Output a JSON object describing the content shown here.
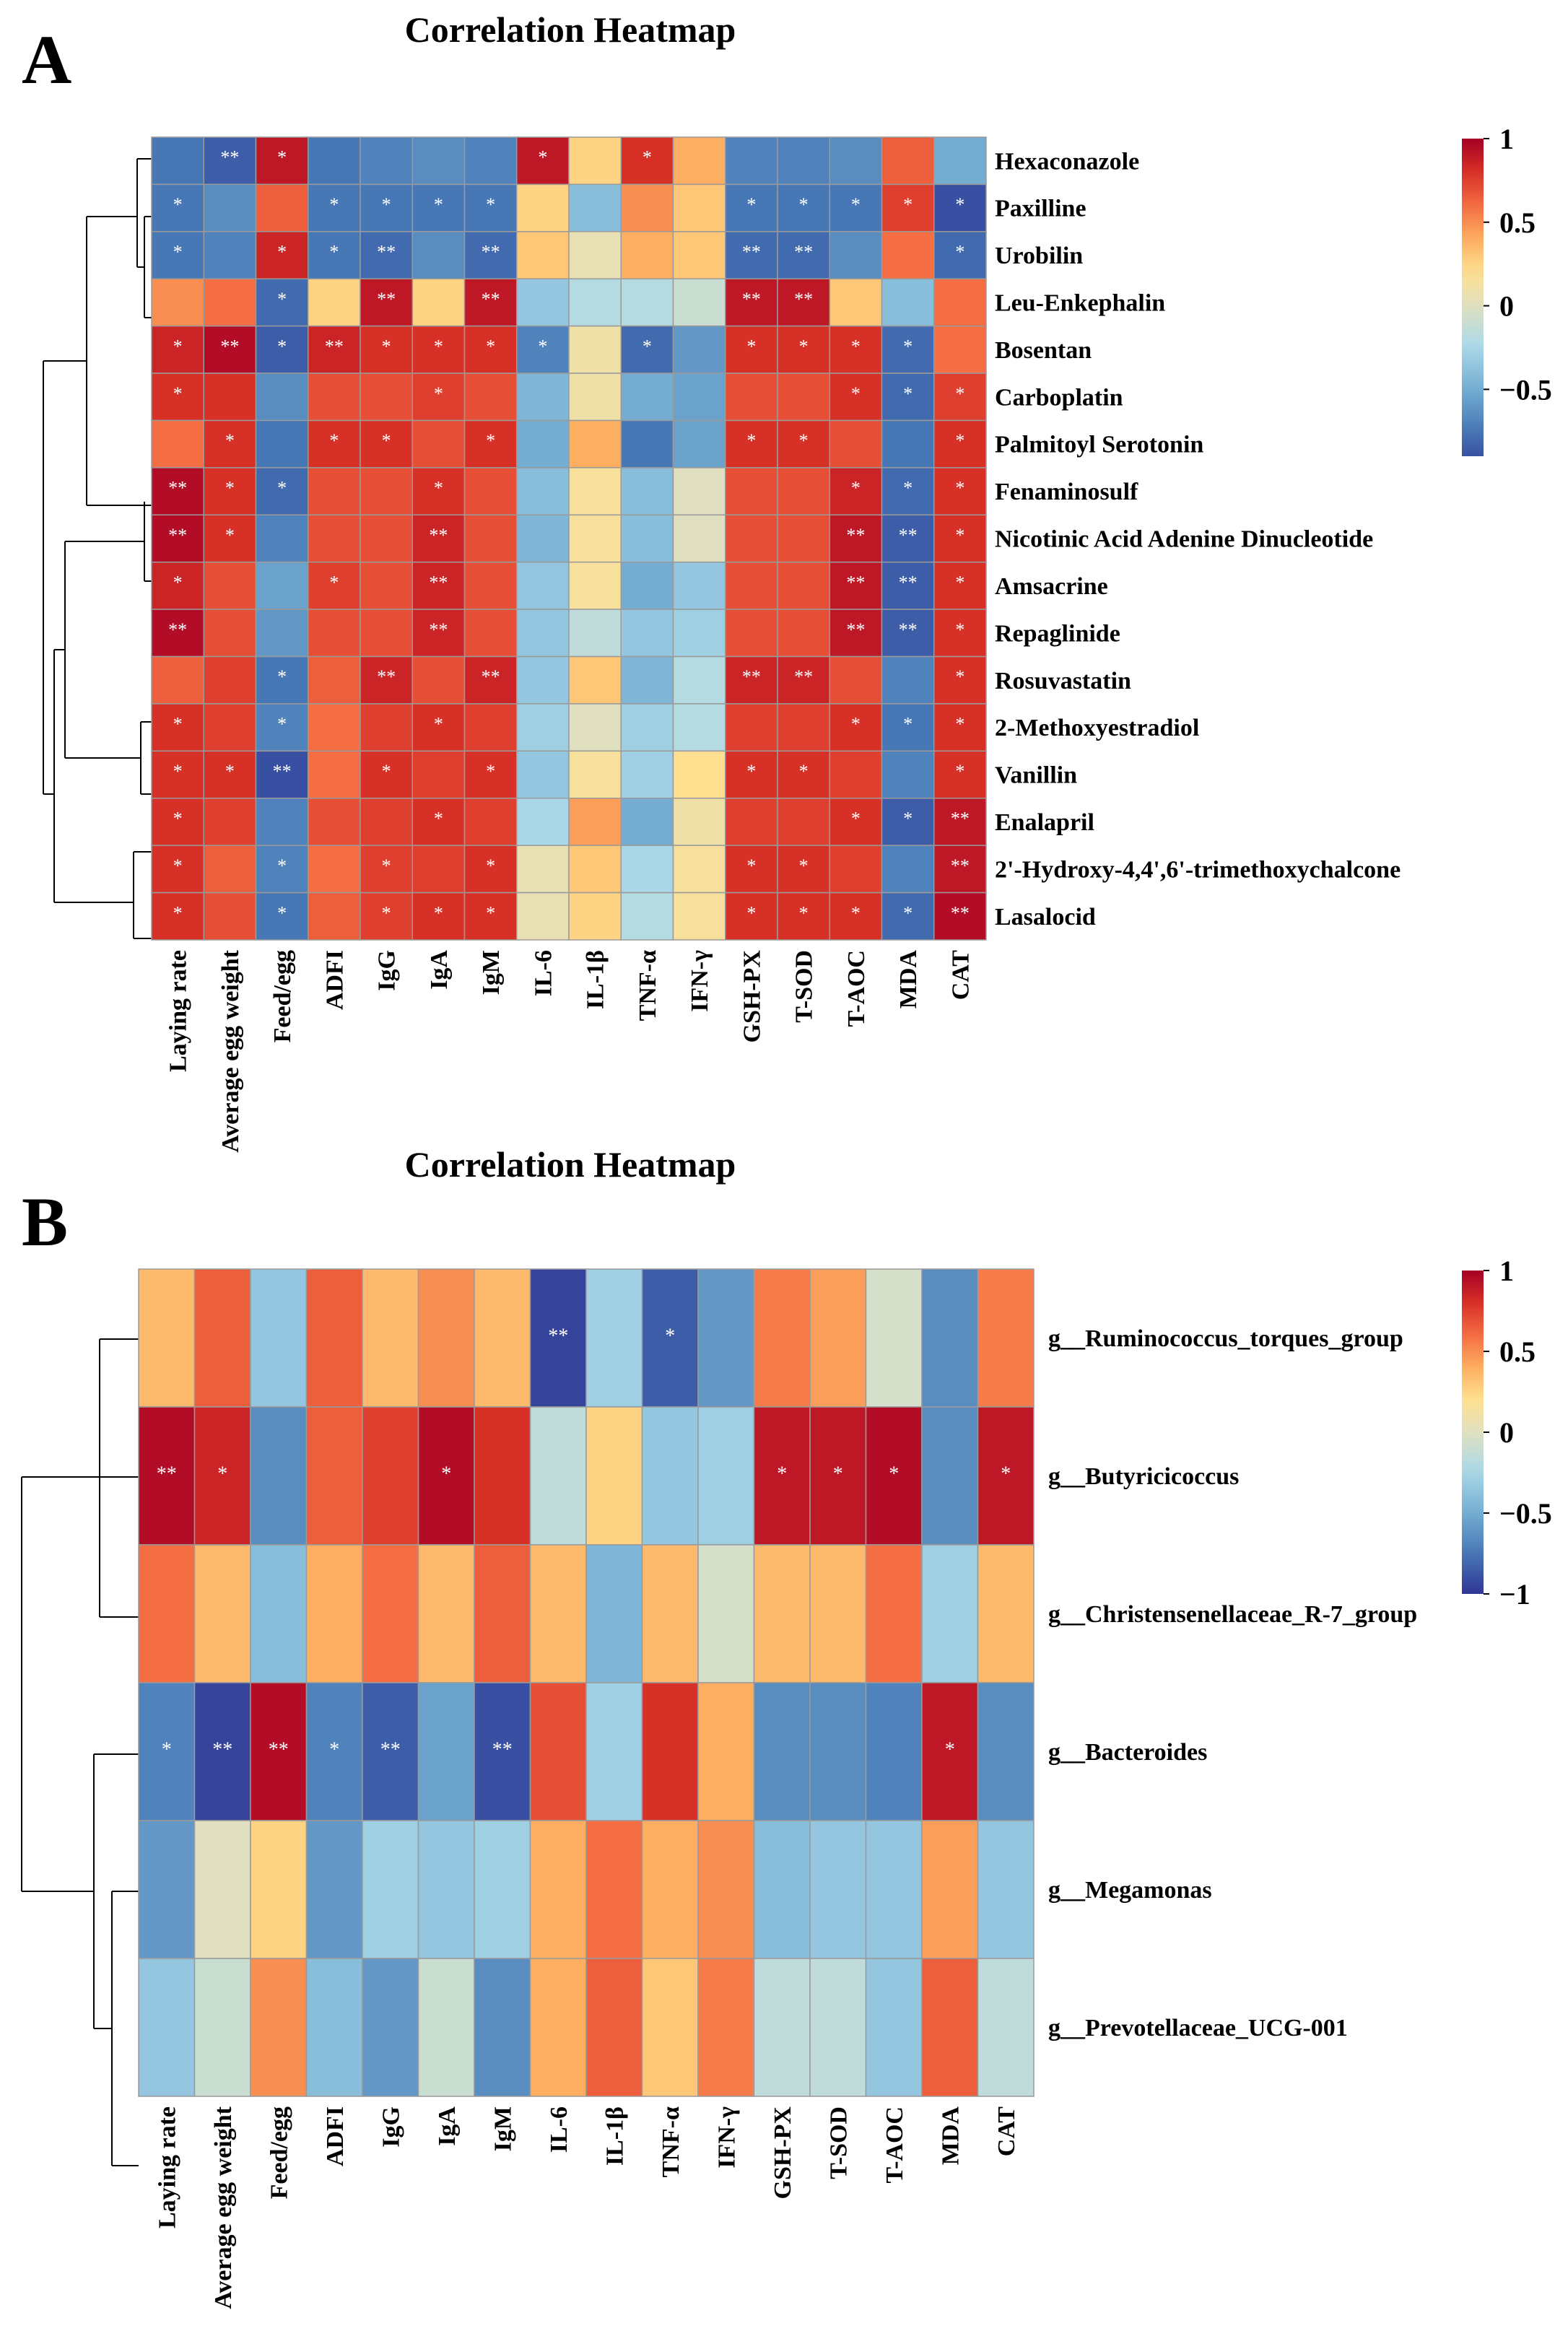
{
  "chart_data": [
    {
      "type": "heatmap",
      "panel_label": "A",
      "title": "Correlation Heatmap",
      "xlabel": "",
      "ylabel": "",
      "columns": [
        "Laying rate",
        "Average egg weight",
        "Feed/egg",
        "ADFI",
        "IgG",
        "IgA",
        "IgM",
        "IL-6",
        "IL-1β",
        "TNF-α",
        "IFN-γ",
        "GSH-PX",
        "T-SOD",
        "T-AOC",
        "MDA",
        "CAT"
      ],
      "rows": [
        "Hexaconazole",
        "Paxilline",
        "Urobilin",
        "Leu-Enkephalin",
        "Bosentan",
        "Carboplatin",
        "Palmitoyl Serotonin",
        "Fenaminosulf",
        "Nicotinic Acid Adenine Dinucleotide",
        "Amsacrine",
        "Repaglinide",
        "Rosuvastatin",
        "2-Methoxyestradiol",
        "Vanillin",
        "Enalapril",
        "2'-Hydroxy-4,4',6'-trimethoxychalcone",
        "Lasalocid"
      ],
      "values": [
        [
          -0.75,
          -0.85,
          0.9,
          -0.75,
          -0.7,
          -0.65,
          -0.7,
          0.9,
          0.25,
          0.8,
          0.4,
          -0.7,
          -0.7,
          -0.65,
          0.65,
          -0.5
        ],
        [
          -0.75,
          -0.65,
          0.65,
          -0.75,
          -0.75,
          -0.75,
          -0.75,
          0.25,
          -0.4,
          0.5,
          0.3,
          -0.75,
          -0.75,
          -0.75,
          0.75,
          -0.9
        ],
        [
          -0.75,
          -0.7,
          0.85,
          -0.75,
          -0.8,
          -0.65,
          -0.8,
          0.3,
          0.05,
          0.4,
          0.3,
          -0.8,
          -0.8,
          -0.65,
          0.6,
          -0.8
        ],
        [
          0.5,
          0.6,
          -0.8,
          0.25,
          0.9,
          0.25,
          0.9,
          -0.35,
          -0.2,
          -0.2,
          -0.1,
          0.9,
          0.9,
          0.3,
          -0.4,
          0.6
        ],
        [
          0.85,
          0.95,
          -0.85,
          0.85,
          0.8,
          0.8,
          0.8,
          -0.7,
          0.1,
          -0.8,
          -0.6,
          0.8,
          0.8,
          0.8,
          -0.8,
          0.6
        ],
        [
          0.8,
          0.8,
          -0.65,
          0.7,
          0.7,
          0.75,
          0.7,
          -0.45,
          0.1,
          -0.5,
          -0.55,
          0.7,
          0.7,
          0.8,
          -0.8,
          0.75
        ],
        [
          0.6,
          0.8,
          -0.75,
          0.8,
          0.8,
          0.7,
          0.8,
          -0.5,
          0.4,
          -0.75,
          -0.55,
          0.8,
          0.8,
          0.7,
          -0.75,
          0.8
        ],
        [
          0.95,
          0.8,
          -0.8,
          0.7,
          0.7,
          0.8,
          0.7,
          -0.4,
          0.15,
          -0.4,
          0.0,
          0.7,
          0.7,
          0.85,
          -0.8,
          0.8
        ],
        [
          0.95,
          0.8,
          -0.7,
          0.7,
          0.7,
          0.85,
          0.7,
          -0.45,
          0.15,
          -0.4,
          0.0,
          0.7,
          0.7,
          0.9,
          -0.85,
          0.8
        ],
        [
          0.85,
          0.7,
          -0.55,
          0.75,
          0.7,
          0.85,
          0.7,
          -0.35,
          0.15,
          -0.5,
          -0.35,
          0.7,
          0.7,
          0.9,
          -0.85,
          0.8
        ],
        [
          0.95,
          0.7,
          -0.6,
          0.7,
          0.7,
          0.85,
          0.7,
          -0.35,
          -0.15,
          -0.35,
          -0.3,
          0.7,
          0.7,
          0.9,
          -0.85,
          0.8
        ],
        [
          0.65,
          0.75,
          -0.75,
          0.65,
          0.85,
          0.7,
          0.85,
          -0.35,
          0.3,
          -0.45,
          -0.2,
          0.85,
          0.85,
          0.7,
          -0.7,
          0.8
        ],
        [
          0.8,
          0.75,
          -0.7,
          0.6,
          0.75,
          0.8,
          0.75,
          -0.3,
          0.0,
          -0.3,
          -0.2,
          0.75,
          0.75,
          0.8,
          -0.75,
          0.8
        ],
        [
          0.8,
          0.8,
          -0.9,
          0.6,
          0.8,
          0.75,
          0.8,
          -0.35,
          0.15,
          -0.3,
          0.2,
          0.8,
          0.8,
          0.75,
          -0.7,
          0.8
        ],
        [
          0.8,
          0.75,
          -0.7,
          0.7,
          0.75,
          0.8,
          0.75,
          -0.25,
          0.45,
          -0.5,
          0.1,
          0.75,
          0.75,
          0.8,
          -0.85,
          0.9
        ],
        [
          0.8,
          0.65,
          -0.7,
          0.6,
          0.75,
          0.75,
          0.8,
          0.05,
          0.3,
          -0.25,
          0.15,
          0.8,
          0.8,
          0.75,
          -0.7,
          0.9
        ],
        [
          0.8,
          0.7,
          -0.75,
          0.65,
          0.75,
          0.8,
          0.8,
          0.05,
          0.25,
          -0.2,
          0.15,
          0.8,
          0.8,
          0.8,
          -0.8,
          0.95
        ]
      ],
      "significance": [
        [
          "",
          "**",
          "*",
          "",
          "",
          "",
          "",
          "*",
          "",
          "*",
          "",
          "",
          "",
          "",
          "",
          ""
        ],
        [
          "*",
          "",
          "",
          "*",
          "*",
          "*",
          "*",
          "",
          "",
          "",
          "",
          "*",
          "*",
          "*",
          "*",
          "*"
        ],
        [
          "*",
          "",
          "*",
          "*",
          "**",
          "",
          "**",
          "",
          "",
          "",
          "",
          "**",
          "**",
          "",
          "",
          "*"
        ],
        [
          "",
          "",
          "*",
          "",
          "**",
          "",
          "**",
          "",
          "",
          "",
          "",
          "**",
          "**",
          "",
          "",
          ""
        ],
        [
          "*",
          "**",
          "*",
          "**",
          "*",
          "*",
          "*",
          "*",
          "",
          "*",
          "",
          "*",
          "*",
          "*",
          "*",
          ""
        ],
        [
          "*",
          "",
          "",
          "",
          "",
          "*",
          "",
          "",
          "",
          "",
          "",
          "",
          "",
          "*",
          "*",
          "*"
        ],
        [
          "",
          "*",
          "",
          "*",
          "*",
          "",
          "*",
          "",
          "",
          "",
          "",
          "*",
          "*",
          "",
          "",
          "*"
        ],
        [
          "**",
          "*",
          "*",
          "",
          "",
          "*",
          "",
          "",
          "",
          "",
          "",
          "",
          "",
          "*",
          "*",
          "*"
        ],
        [
          "**",
          "*",
          "",
          "",
          "",
          "**",
          "",
          "",
          "",
          "",
          "",
          "",
          "",
          "**",
          "**",
          "*"
        ],
        [
          "*",
          "",
          "",
          "*",
          "",
          "**",
          "",
          "",
          "",
          "",
          "",
          "",
          "",
          "**",
          "**",
          "*"
        ],
        [
          "**",
          "",
          "",
          "",
          "",
          "**",
          "",
          "",
          "",
          "",
          "",
          "",
          "",
          "**",
          "**",
          "*"
        ],
        [
          "",
          "",
          "*",
          "",
          "**",
          "",
          "**",
          "",
          "",
          "",
          "",
          "**",
          "**",
          "",
          "",
          "*"
        ],
        [
          "*",
          "",
          "*",
          "",
          "",
          "*",
          "",
          "",
          "",
          "",
          "",
          "",
          "",
          "*",
          "*",
          "*"
        ],
        [
          "*",
          "*",
          "**",
          "",
          "*",
          "",
          "*",
          "",
          "",
          "",
          "",
          "*",
          "*",
          "",
          "",
          "*"
        ],
        [
          "*",
          "",
          "",
          "",
          "",
          "*",
          "",
          "",
          "",
          "",
          "",
          "",
          "",
          "*",
          "*",
          "**"
        ],
        [
          "*",
          "",
          "*",
          "",
          "*",
          "",
          "*",
          "",
          "",
          "",
          "",
          "*",
          "*",
          "",
          "",
          "**"
        ],
        [
          "*",
          "",
          "*",
          "",
          "*",
          "*",
          "*",
          "",
          "",
          "",
          "",
          "*",
          "*",
          "*",
          "*",
          "**"
        ]
      ],
      "colorbar": {
        "min": -0.9,
        "max": 1,
        "ticks": [
          1,
          0.5,
          0,
          -0.5
        ],
        "tick_labels": [
          "1",
          "0.5",
          "0",
          "−0.5"
        ]
      },
      "dendrogram": "rows"
    },
    {
      "type": "heatmap",
      "panel_label": "B",
      "title": "Correlation Heatmap",
      "xlabel": "",
      "ylabel": "",
      "columns": [
        "Laying rate",
        "Average egg weight",
        "Feed/egg",
        "ADFI",
        "IgG",
        "IgA",
        "IgM",
        "IL-6",
        "IL-1β",
        "TNF-α",
        "IFN-γ",
        "GSH-PX",
        "T-SOD",
        "T-AOC",
        "MDA",
        "CAT"
      ],
      "rows": [
        "g__Ruminococcus_torques_group",
        "g__Butyricicoccus",
        "g__Christensenellaceae_R-7_group",
        "g__Bacteroides",
        "g__Megamonas",
        "g__Prevotellaceae_UCG-001"
      ],
      "values": [
        [
          0.35,
          0.65,
          -0.35,
          0.65,
          0.35,
          0.5,
          0.35,
          -0.95,
          -0.3,
          -0.85,
          -0.6,
          0.55,
          0.45,
          -0.05,
          -0.65,
          0.55
        ],
        [
          0.95,
          0.85,
          -0.65,
          0.65,
          0.75,
          0.95,
          0.8,
          -0.15,
          0.25,
          -0.35,
          -0.3,
          0.9,
          0.9,
          0.95,
          -0.65,
          0.9
        ],
        [
          0.6,
          0.35,
          -0.4,
          0.4,
          0.6,
          0.35,
          0.65,
          0.35,
          -0.45,
          0.35,
          -0.05,
          0.35,
          0.35,
          0.6,
          -0.3,
          0.35
        ],
        [
          -0.7,
          -0.95,
          0.95,
          -0.7,
          -0.85,
          -0.55,
          -0.9,
          0.7,
          -0.3,
          0.8,
          0.4,
          -0.65,
          -0.65,
          -0.7,
          0.9,
          -0.65
        ],
        [
          -0.6,
          0.0,
          0.25,
          -0.6,
          -0.3,
          -0.35,
          -0.3,
          0.4,
          0.6,
          0.4,
          0.5,
          -0.4,
          -0.35,
          -0.35,
          0.45,
          -0.35
        ],
        [
          -0.35,
          -0.1,
          0.5,
          -0.4,
          -0.6,
          -0.1,
          -0.65,
          0.4,
          0.65,
          0.3,
          0.55,
          -0.15,
          -0.15,
          -0.35,
          0.65,
          -0.15
        ]
      ],
      "significance": [
        [
          "",
          "",
          "",
          "",
          "",
          "",
          "",
          "**",
          "",
          "*",
          "",
          "",
          "",
          "",
          "",
          ""
        ],
        [
          "**",
          "*",
          "",
          "",
          "",
          "*",
          "",
          "",
          "",
          "",
          "",
          "*",
          "*",
          "*",
          "",
          "*"
        ],
        [
          "",
          "",
          "",
          "",
          "",
          "",
          "",
          "",
          "",
          "",
          "",
          "",
          "",
          "",
          "",
          ""
        ],
        [
          "*",
          "**",
          "**",
          "*",
          "**",
          "",
          "**",
          "",
          "",
          "",
          "",
          "",
          "",
          "",
          "*",
          ""
        ],
        [
          "",
          "",
          "",
          "",
          "",
          "",
          "",
          "",
          "",
          "",
          "",
          "",
          "",
          "",
          "",
          ""
        ],
        [
          "",
          "",
          "",
          "",
          "",
          "",
          "",
          "",
          "",
          "",
          "",
          "",
          "",
          "",
          "",
          ""
        ]
      ],
      "colorbar": {
        "min": -1,
        "max": 1,
        "ticks": [
          1,
          0.5,
          0,
          -0.5,
          -1
        ],
        "tick_labels": [
          "1",
          "0.5",
          "0",
          "−0.5",
          "−1"
        ]
      },
      "dendrogram": "rows"
    }
  ]
}
